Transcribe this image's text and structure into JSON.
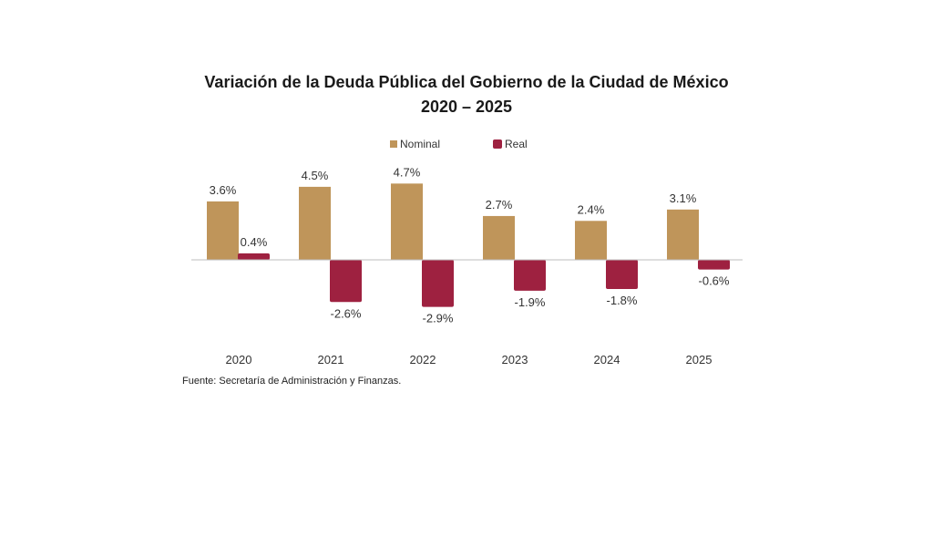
{
  "chart_data": {
    "type": "bar",
    "title": "Variación de la Deuda Pública del Gobierno de la Ciudad de México",
    "subtitle": "2020 – 2025",
    "categories": [
      "2020",
      "2021",
      "2022",
      "2023",
      "2024",
      "2025"
    ],
    "series": [
      {
        "name": "Nominal",
        "color": "#bf955a",
        "values": [
          3.6,
          4.5,
          4.7,
          2.7,
          2.4,
          3.1
        ],
        "labels": [
          "3.6%",
          "4.5%",
          "4.7%",
          "2.7%",
          "2.4%",
          "3.1%"
        ]
      },
      {
        "name": "Real",
        "color": "#9e2140",
        "values": [
          0.4,
          -2.6,
          -2.9,
          -1.9,
          -1.8,
          -0.6
        ],
        "labels": [
          "0.4%",
          "-2.6%",
          "-2.9%",
          "-1.9%",
          "-1.8%",
          "-0.6%"
        ]
      }
    ],
    "xlabel": "",
    "ylabel": "",
    "ylim": [
      -3.5,
      5.5
    ],
    "grid": false,
    "legend_position": "top-center",
    "source": "Fuente: Secretaría de Administración y Finanzas."
  }
}
